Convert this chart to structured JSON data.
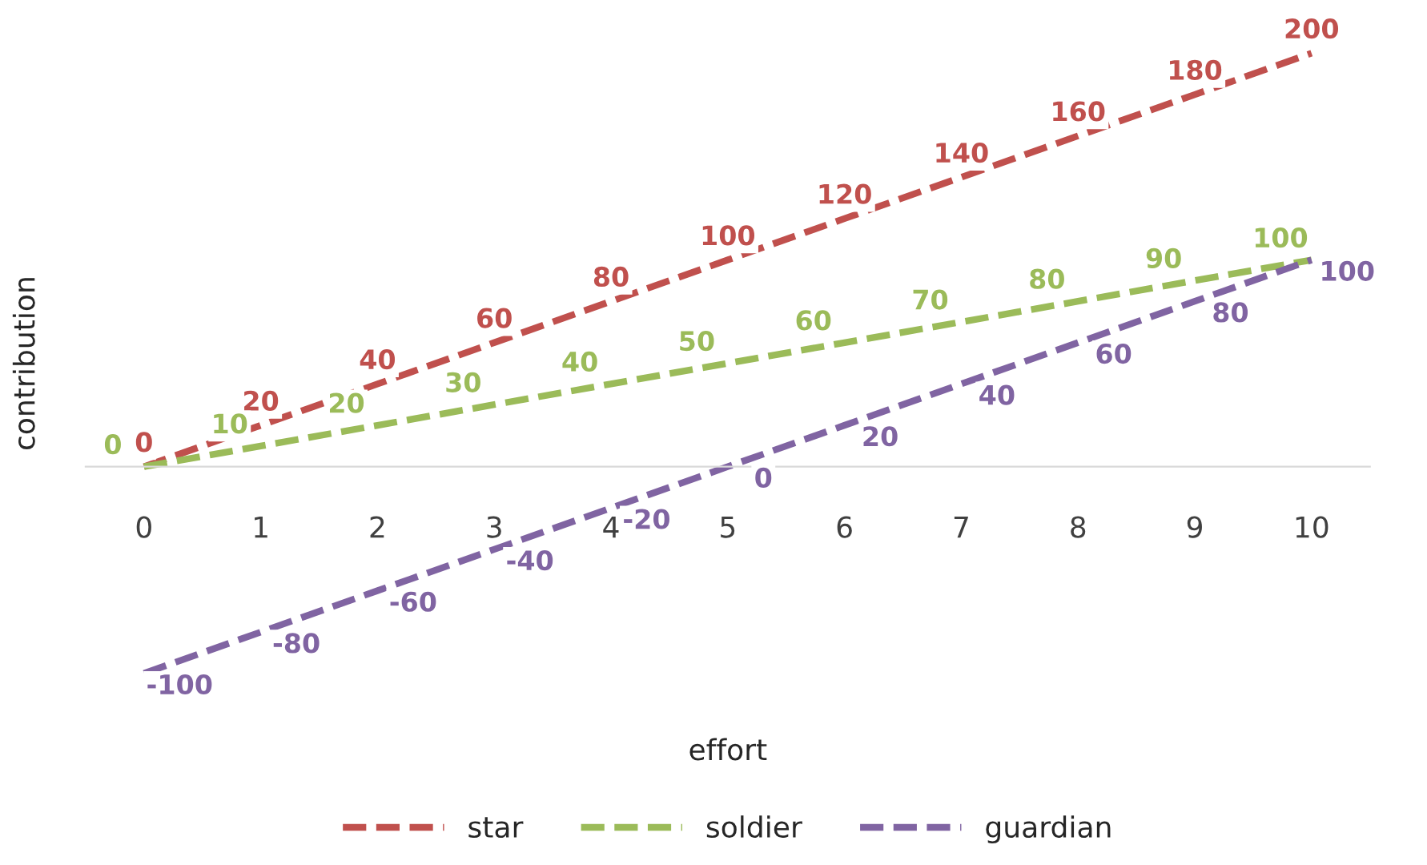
{
  "chart_data": {
    "type": "line",
    "xlabel": "effort",
    "ylabel": "contribution",
    "categories": [
      "0",
      "1",
      "2",
      "3",
      "4",
      "5",
      "6",
      "7",
      "8",
      "9",
      "10"
    ],
    "series": [
      {
        "name": "star",
        "color": "#c0504d",
        "values": [
          0,
          20,
          40,
          60,
          80,
          100,
          120,
          140,
          160,
          180,
          200
        ]
      },
      {
        "name": "soldier",
        "color": "#9bbb59",
        "values": [
          0,
          10,
          20,
          30,
          40,
          50,
          60,
          70,
          80,
          90,
          100
        ]
      },
      {
        "name": "guardian",
        "color": "#8064a2",
        "values": [
          -100,
          -80,
          -60,
          -40,
          -20,
          0,
          20,
          40,
          60,
          80,
          100
        ]
      }
    ],
    "data_labels": true,
    "marker": "none",
    "line_style": "dashed",
    "legend": "bottom",
    "grid": false,
    "tick_labels": "x"
  }
}
